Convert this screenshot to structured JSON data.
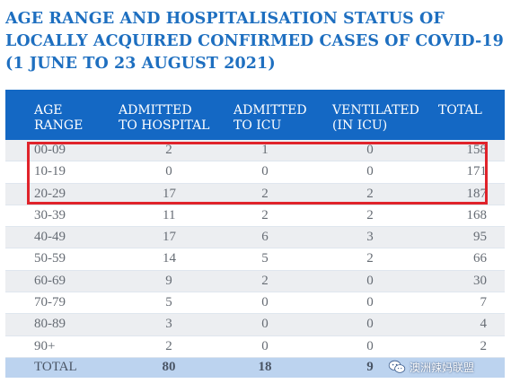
{
  "title": {
    "line1": "AGE RANGE AND HOSPITALISATION STATUS OF",
    "line2": "LOCALLY ACQUIRED CONFIRMED CASES OF COVID-19",
    "line3": "(1 JUNE TO 23 AUGUST 2021)"
  },
  "table": {
    "headers": [
      [
        "AGE",
        "RANGE"
      ],
      [
        "ADMITTED",
        "TO HOSPITAL"
      ],
      [
        "ADMITTED",
        "TO ICU"
      ],
      [
        "VENTILATED",
        "(IN ICU)"
      ],
      [
        "",
        "TOTAL"
      ]
    ],
    "rows": [
      [
        "00-09",
        "2",
        "1",
        "0",
        "158"
      ],
      [
        "10-19",
        "0",
        "0",
        "0",
        "171"
      ],
      [
        "20-29",
        "17",
        "2",
        "2",
        "187"
      ],
      [
        "30-39",
        "11",
        "2",
        "2",
        "168"
      ],
      [
        "40-49",
        "17",
        "6",
        "3",
        "95"
      ],
      [
        "50-59",
        "14",
        "5",
        "2",
        "66"
      ],
      [
        "60-69",
        "9",
        "2",
        "0",
        "30"
      ],
      [
        "70-79",
        "5",
        "0",
        "0",
        "7"
      ],
      [
        "80-89",
        "3",
        "0",
        "0",
        "4"
      ],
      [
        "90+",
        "2",
        "0",
        "0",
        "2"
      ]
    ],
    "total": [
      "TOTAL",
      "80",
      "18",
      "9",
      ""
    ]
  },
  "watermark": {
    "text": "澳洲辣妈联盟",
    "icon": "wechat-logo-icon"
  },
  "colors": {
    "title": "#1e6fc0",
    "header_bg": "#1468c4",
    "alt_row": "#eceef1",
    "total_bg": "#bcd3ef",
    "highlight": "#e0232b"
  }
}
